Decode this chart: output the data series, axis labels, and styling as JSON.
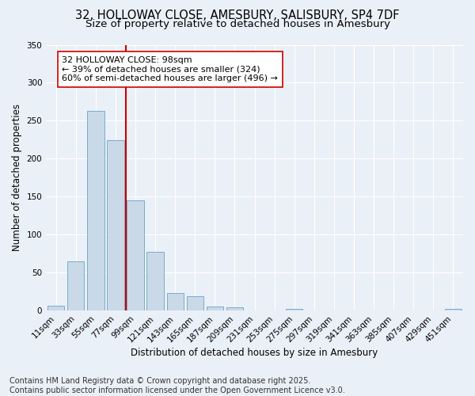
{
  "title_line1": "32, HOLLOWAY CLOSE, AMESBURY, SALISBURY, SP4 7DF",
  "title_line2": "Size of property relative to detached houses in Amesbury",
  "xlabel": "Distribution of detached houses by size in Amesbury",
  "ylabel": "Number of detached properties",
  "bar_labels": [
    "11sqm",
    "33sqm",
    "55sqm",
    "77sqm",
    "99sqm",
    "121sqm",
    "143sqm",
    "165sqm",
    "187sqm",
    "209sqm",
    "231sqm",
    "253sqm",
    "275sqm",
    "297sqm",
    "319sqm",
    "341sqm",
    "363sqm",
    "385sqm",
    "407sqm",
    "429sqm",
    "451sqm"
  ],
  "bar_values": [
    7,
    65,
    263,
    224,
    145,
    77,
    23,
    19,
    5,
    4,
    0,
    0,
    2,
    0,
    0,
    0,
    0,
    0,
    0,
    0,
    2
  ],
  "bar_color": "#c9d9e8",
  "bar_edgecolor": "#7aacc8",
  "redline_color": "#cc0000",
  "annotation_text": "32 HOLLOWAY CLOSE: 98sqm\n← 39% of detached houses are smaller (324)\n60% of semi-detached houses are larger (496) →",
  "annotation_box_color": "white",
  "annotation_box_edgecolor": "#cc0000",
  "ylim": [
    0,
    350
  ],
  "yticks": [
    0,
    50,
    100,
    150,
    200,
    250,
    300,
    350
  ],
  "bg_color": "#eaf0f8",
  "grid_color": "white",
  "footer_line1": "Contains HM Land Registry data © Crown copyright and database right 2025.",
  "footer_line2": "Contains public sector information licensed under the Open Government Licence v3.0.",
  "title_fontsize": 10.5,
  "subtitle_fontsize": 9.5,
  "xlabel_fontsize": 8.5,
  "ylabel_fontsize": 8.5,
  "tick_fontsize": 7.5,
  "annotation_fontsize": 8,
  "footer_fontsize": 7
}
